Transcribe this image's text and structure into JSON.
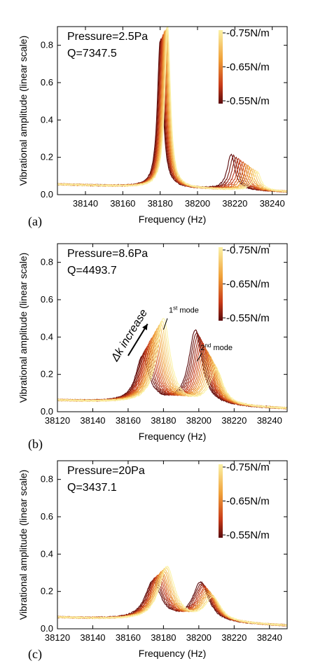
{
  "chart_data": [
    {
      "panel_label": "(a)",
      "type": "line",
      "annotations": [
        "Pressure=2.5Pa",
        "Q=7347.5"
      ],
      "xlabel": "Frequency (Hz)",
      "ylabel": "Vibrational amplitude (linear scale)",
      "xlim": [
        38125,
        38248
      ],
      "ylim": [
        0,
        0.9
      ],
      "xticks": [
        38140,
        38160,
        38180,
        38200,
        38220,
        38240
      ],
      "yticks": [
        0.0,
        0.2,
        0.4,
        0.6,
        0.8
      ],
      "grid": false,
      "colorbar": {
        "labels": [
          "-0.75N/m",
          "-0.65N/m",
          "-0.55N/m"
        ],
        "colors": [
          "#fbf2a6",
          "#f0a038",
          "#c83a18",
          "#5a0a0c"
        ]
      },
      "curve_count": 12,
      "first_mode": {
        "peak_freq_range": [
          38180,
          38184
        ],
        "peak_amp_range": [
          0.8,
          0.88
        ],
        "width": 1.8
      },
      "second_mode": {
        "peak_freq_range": [
          38218,
          38232
        ],
        "peak_amp_range": [
          0.19,
          0.1
        ],
        "width": 2.5
      },
      "baseline": {
        "start": 0.055,
        "end": 0.015
      }
    },
    {
      "panel_label": "(b)",
      "type": "line",
      "annotations": [
        "Pressure=8.6Pa",
        "Q=4493.7"
      ],
      "labels": {
        "arrow": "Δk increase",
        "mode1": "1",
        "mode1_sup": "st",
        "mode1_tail": " mode",
        "mode2": "2",
        "mode2_sup": "nd",
        "mode2_tail": " mode"
      },
      "xlabel": "Frequency (Hz)",
      "ylabel": "Vibrational amplitude (linear scale)",
      "xlim": [
        38120,
        38250
      ],
      "ylim": [
        0,
        0.9
      ],
      "xticks": [
        38120,
        38140,
        38160,
        38180,
        38200,
        38220,
        38240
      ],
      "yticks": [
        0.0,
        0.2,
        0.4,
        0.6,
        0.8
      ],
      "grid": false,
      "colorbar": {
        "labels": [
          "-0.75N/m",
          "-0.65N/m",
          "-0.55N/m"
        ],
        "colors": [
          "#fbf2a6",
          "#f0a038",
          "#c83a18",
          "#5a0a0c"
        ]
      },
      "curve_count": 16,
      "first_mode": {
        "peak_freq_range": [
          38168,
          38180
        ],
        "peak_amp_range": [
          0.26,
          0.47
        ],
        "width": 4.5
      },
      "second_mode": {
        "peak_freq_range": [
          38198,
          38210
        ],
        "peak_amp_range": [
          0.4,
          0.19
        ],
        "width": 4.5
      },
      "baseline": {
        "start": 0.06,
        "end": 0.015
      }
    },
    {
      "panel_label": "(c)",
      "type": "line",
      "annotations": [
        "Pressure=20Pa",
        "Q=3437.1"
      ],
      "xlabel": "Frequency (Hz)",
      "ylabel": "Vibrational amplitude (linear scale)",
      "xlim": [
        38120,
        38250
      ],
      "ylim": [
        0,
        0.9
      ],
      "xticks": [
        38120,
        38140,
        38160,
        38180,
        38200,
        38220,
        38240
      ],
      "yticks": [
        0.0,
        0.2,
        0.4,
        0.6,
        0.8
      ],
      "grid": false,
      "colorbar": {
        "labels": [
          "-0.75N/m",
          "-0.65N/m",
          "-0.55N/m"
        ],
        "colors": [
          "#fbf2a6",
          "#f0a038",
          "#c83a18",
          "#5a0a0c"
        ]
      },
      "curve_count": 12,
      "first_mode": {
        "peak_freq_range": [
          38174,
          38182
        ],
        "peak_amp_range": [
          0.22,
          0.3
        ],
        "width": 5.5
      },
      "second_mode": {
        "peak_freq_range": [
          38201,
          38208
        ],
        "peak_amp_range": [
          0.21,
          0.13
        ],
        "width": 5.5
      },
      "baseline": {
        "start": 0.06,
        "end": 0.015
      }
    }
  ]
}
